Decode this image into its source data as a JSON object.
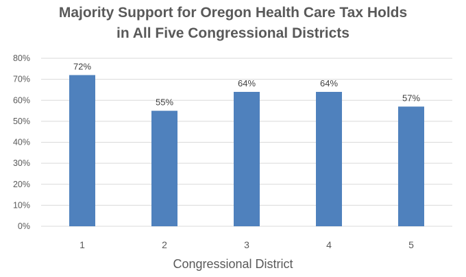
{
  "chart_data": {
    "type": "bar",
    "title_lines": [
      "Majority Support for Oregon Health Care Tax Holds",
      "in All Five Congressional Districts"
    ],
    "xlabel": "Congressional District",
    "ylabel": "",
    "categories": [
      "1",
      "2",
      "3",
      "4",
      "5"
    ],
    "values": [
      72,
      55,
      64,
      64,
      57
    ],
    "data_labels": [
      "72%",
      "55%",
      "64%",
      "64%",
      "57%"
    ],
    "ylim": [
      0,
      80
    ],
    "y_ticks": [
      0,
      10,
      20,
      30,
      40,
      50,
      60,
      70,
      80
    ],
    "y_tick_labels": [
      "0%",
      "10%",
      "20%",
      "30%",
      "40%",
      "50%",
      "60%",
      "70%",
      "80%"
    ],
    "grid": true,
    "legend": "none",
    "colors": {
      "bar": "#4f81bd",
      "grid": "#d9d9d9",
      "text": "#595959"
    }
  }
}
